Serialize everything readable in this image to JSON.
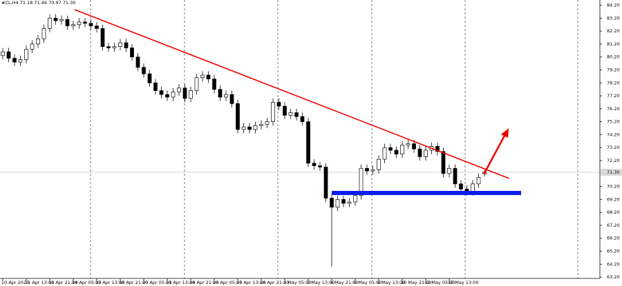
{
  "chart_data": {
    "type": "candlestick",
    "header": "#CL,H4 71.18 71.46 70.97 71.30",
    "categories": [
      "10 Apr 2023",
      null,
      null,
      null,
      "11 Apr 13:00",
      null,
      null,
      null,
      "12 Apr 21:00",
      null,
      null,
      null,
      "14 Apr 05:00",
      null,
      null,
      null,
      "17 Apr 13:00",
      null,
      null,
      null,
      "18 Apr 21:00",
      null,
      null,
      null,
      "20 Apr 05:00",
      null,
      null,
      null,
      "21 Apr 13:00",
      null,
      null,
      null,
      "24 Apr 21:00",
      null,
      null,
      null,
      "26 Apr 05:00",
      null,
      null,
      null,
      "27 Apr 13:00",
      null,
      null,
      null,
      "28 Apr 21:00",
      null,
      null,
      null,
      "2 May 05:00",
      null,
      null,
      null,
      "3 May 13:00",
      null,
      null,
      null,
      "4 May 21:00",
      null,
      null,
      null,
      "8 May 05:00",
      null,
      null,
      null,
      "9 May 13:00",
      null,
      null,
      null,
      "10 May 21:00",
      null,
      null,
      null,
      "12 May 05:00",
      null,
      null,
      null,
      "15 May 13:00",
      null,
      null,
      null,
      null,
      null,
      null
    ],
    "open": [
      80.3,
      80.6,
      80.1,
      79.8,
      80.0,
      80.8,
      81.2,
      81.6,
      82.4,
      83.2,
      83.0,
      83.1,
      82.6,
      82.7,
      82.9,
      82.8,
      82.6,
      82.4,
      81.0,
      80.9,
      81.0,
      81.3,
      80.9,
      80.2,
      79.4,
      78.9,
      78.2,
      77.6,
      77.3,
      77.1,
      77.5,
      77.8,
      77.0,
      77.6,
      78.6,
      78.8,
      78.5,
      77.7,
      77.1,
      77.3,
      76.6,
      74.6,
      74.8,
      74.6,
      74.9,
      75.0,
      75.2,
      76.7,
      76.4,
      75.7,
      75.9,
      75.6,
      75.2,
      72.0,
      71.8,
      71.7,
      69.3,
      68.6,
      69.2,
      68.9,
      69.0,
      69.5,
      71.6,
      71.4,
      71.5,
      72.3,
      73.2,
      73.0,
      72.7,
      73.4,
      73.5,
      73.1,
      72.5,
      73.0,
      73.3,
      72.9,
      71.2,
      71.6,
      70.4,
      70.0,
      69.8,
      70.4,
      71.18
    ],
    "high": [
      80.9,
      80.9,
      80.4,
      80.3,
      81.1,
      81.5,
      81.9,
      82.7,
      83.5,
      83.5,
      83.4,
      83.4,
      83.0,
      83.2,
      83.2,
      83.1,
      82.9,
      82.7,
      81.3,
      81.3,
      81.6,
      81.6,
      81.2,
      80.5,
      79.7,
      79.2,
      78.5,
      77.9,
      77.6,
      77.8,
      78.1,
      78.1,
      77.9,
      78.9,
      79.1,
      79.1,
      78.8,
      78.0,
      77.6,
      77.6,
      76.9,
      75.1,
      75.1,
      75.2,
      75.3,
      75.5,
      77.0,
      77.0,
      76.7,
      76.2,
      76.2,
      75.9,
      75.5,
      72.3,
      72.1,
      72.0,
      69.6,
      69.5,
      69.5,
      69.3,
      69.8,
      71.9,
      71.9,
      71.8,
      72.6,
      73.5,
      73.5,
      73.3,
      73.7,
      73.8,
      73.8,
      73.4,
      73.3,
      73.6,
      73.6,
      73.2,
      71.9,
      71.9,
      70.7,
      70.3,
      70.7,
      71.2,
      71.46
    ],
    "low": [
      80.0,
      79.8,
      79.5,
      79.5,
      79.7,
      80.5,
      80.9,
      81.3,
      82.1,
      82.7,
      82.7,
      82.3,
      82.3,
      82.4,
      82.5,
      82.3,
      82.1,
      80.7,
      80.6,
      80.6,
      80.7,
      80.6,
      79.9,
      79.1,
      78.6,
      77.9,
      77.3,
      77.0,
      76.8,
      76.8,
      77.2,
      76.7,
      76.7,
      77.3,
      78.3,
      78.2,
      77.4,
      76.8,
      76.8,
      76.3,
      74.3,
      74.3,
      74.3,
      74.3,
      74.6,
      74.7,
      74.9,
      76.1,
      75.4,
      75.4,
      75.3,
      74.9,
      71.7,
      71.5,
      71.4,
      69.0,
      64.0,
      68.3,
      68.6,
      68.6,
      68.7,
      69.2,
      71.1,
      71.1,
      71.2,
      72.0,
      72.7,
      72.4,
      72.4,
      73.1,
      72.8,
      72.2,
      72.2,
      72.7,
      72.6,
      70.9,
      70.9,
      70.1,
      69.7,
      69.5,
      69.5,
      70.1,
      70.97
    ],
    "close": [
      80.6,
      80.1,
      79.8,
      80.0,
      80.8,
      81.2,
      81.6,
      82.4,
      83.2,
      83.0,
      83.1,
      82.6,
      82.7,
      82.9,
      82.8,
      82.6,
      82.4,
      81.0,
      80.9,
      81.0,
      81.3,
      80.9,
      80.2,
      79.4,
      78.9,
      78.2,
      77.6,
      77.3,
      77.1,
      77.5,
      77.8,
      77.0,
      77.6,
      78.6,
      78.8,
      78.5,
      77.7,
      77.1,
      77.3,
      76.6,
      74.6,
      74.8,
      74.6,
      74.9,
      75.0,
      75.2,
      76.7,
      76.4,
      75.7,
      75.9,
      75.6,
      75.2,
      72.0,
      71.8,
      71.7,
      69.3,
      68.6,
      69.2,
      68.9,
      69.0,
      69.5,
      71.6,
      71.4,
      71.5,
      72.3,
      73.2,
      73.0,
      72.7,
      73.4,
      73.5,
      73.1,
      72.5,
      73.0,
      73.3,
      72.9,
      71.2,
      71.6,
      70.4,
      70.0,
      69.8,
      70.4,
      70.9,
      71.3
    ],
    "ylim": [
      63.1,
      84.6
    ],
    "yticks": [
      {
        "value": 84.2,
        "label": "84.20"
      },
      {
        "value": 83.2,
        "label": "83.20"
      },
      {
        "value": 82.2,
        "label": "82.20"
      },
      {
        "value": 81.2,
        "label": "81.20"
      },
      {
        "value": 80.2,
        "label": "80.20"
      },
      {
        "value": 79.2,
        "label": "79.20"
      },
      {
        "value": 78.2,
        "label": "78.20"
      },
      {
        "value": 77.2,
        "label": "77.20"
      },
      {
        "value": 76.2,
        "label": "76.20"
      },
      {
        "value": 75.2,
        "label": "75.20"
      },
      {
        "value": 74.2,
        "label": "74.20"
      },
      {
        "value": 73.2,
        "label": "73.20"
      },
      {
        "value": 72.2,
        "label": "72.20"
      },
      {
        "value": 70.2,
        "label": "70.20"
      },
      {
        "value": 69.2,
        "label": "69.20"
      },
      {
        "value": 68.2,
        "label": "68.20"
      },
      {
        "value": 67.2,
        "label": "67.20"
      },
      {
        "value": 66.2,
        "label": "66.20"
      },
      {
        "value": 65.2,
        "label": "65.20"
      },
      {
        "value": 64.2,
        "label": "64.20"
      },
      {
        "value": 63.2,
        "label": "63.20"
      }
    ],
    "last_price": {
      "value": 71.3,
      "label": "71.30"
    }
  }
}
